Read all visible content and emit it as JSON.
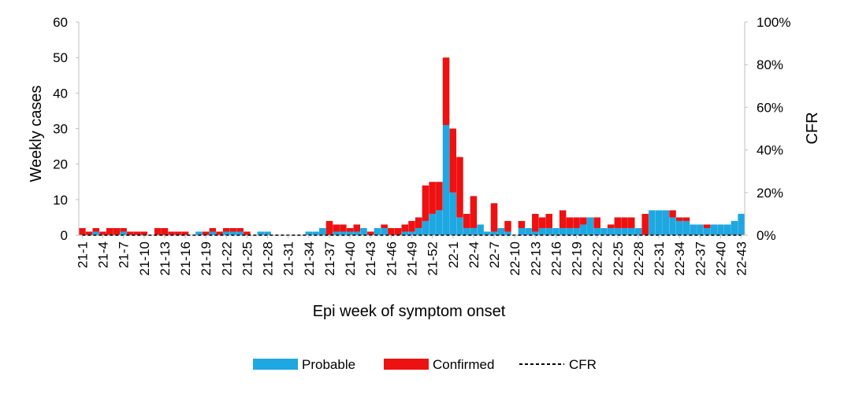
{
  "chart_data": {
    "type": "bar",
    "stacked": true,
    "xlabel": "Epi week of symptom onset",
    "ylabel": "Weekly cases",
    "y2label": "CFR",
    "ylim": [
      0,
      60
    ],
    "y2lim": [
      0,
      1
    ],
    "yticks": [
      "0",
      "10",
      "20",
      "30",
      "40",
      "50",
      "60"
    ],
    "y2ticks": [
      "0%",
      "20%",
      "40%",
      "60%",
      "80%",
      "100%"
    ],
    "xtick_labels": [
      "21-1",
      "21-4",
      "21-7",
      "21-10",
      "21-13",
      "21-16",
      "21-19",
      "21-22",
      "21-25",
      "21-28",
      "21-31",
      "21-34",
      "21-37",
      "21-40",
      "21-43",
      "21-46",
      "21-49",
      "21-52",
      "22-1",
      "22-4",
      "22-7",
      "22-10",
      "22-13",
      "22-16",
      "22-19",
      "22-22",
      "22-25",
      "22-28",
      "22-31",
      "22-34",
      "22-37",
      "22-40",
      "22-43"
    ],
    "xtick_step": 3,
    "n_weeks": 97,
    "legend": {
      "position": "bottom",
      "items": [
        "Probable",
        "Confirmed",
        "CFR"
      ]
    },
    "grid": false,
    "colors": {
      "probable": "#1ea7e1",
      "confirmed": "#ee1111",
      "cfr": "#000000",
      "axis": "#bfbfbf"
    },
    "series": [
      {
        "name": "Probable",
        "values": [
          0,
          0,
          1,
          0,
          0,
          0,
          1,
          0,
          0,
          0,
          0,
          0,
          0,
          0,
          0,
          0,
          0,
          1,
          0,
          1,
          0,
          1,
          1,
          1,
          0,
          0,
          1,
          1,
          0,
          0,
          0,
          0,
          0,
          1,
          1,
          2,
          0,
          1,
          1,
          1,
          1,
          2,
          0,
          2,
          2,
          0,
          0,
          1,
          1,
          2,
          4,
          6,
          7,
          31,
          12,
          5,
          2,
          2,
          3,
          1,
          1,
          2,
          1,
          0,
          2,
          2,
          1,
          2,
          2,
          2,
          2,
          2,
          2,
          3,
          5,
          2,
          2,
          2,
          2,
          2,
          2,
          2,
          0,
          7,
          7,
          7,
          5,
          4,
          4,
          3,
          3,
          2,
          3,
          3,
          3,
          4,
          6
        ]
      },
      {
        "name": "Confirmed",
        "values": [
          2,
          1,
          1,
          1,
          2,
          2,
          1,
          1,
          1,
          1,
          0,
          2,
          2,
          1,
          1,
          1,
          0,
          0,
          1,
          1,
          1,
          1,
          1,
          1,
          1,
          0,
          0,
          0,
          0,
          0,
          0,
          0,
          0,
          0,
          0,
          0,
          4,
          2,
          2,
          1,
          2,
          0,
          1,
          0,
          1,
          2,
          2,
          2,
          3,
          3,
          10,
          9,
          8,
          19,
          18,
          17,
          4,
          9,
          0,
          0,
          8,
          0,
          3,
          0,
          2,
          0,
          5,
          3,
          4,
          0,
          5,
          3,
          3,
          2,
          0,
          3,
          0,
          1,
          3,
          3,
          3,
          0,
          6,
          0,
          0,
          0,
          2,
          1,
          1,
          0,
          0,
          1,
          0,
          0,
          0,
          0,
          0
        ]
      },
      {
        "name": "CFR",
        "values": [
          0,
          0,
          0,
          0,
          0,
          0,
          0,
          0,
          0,
          0,
          0,
          0,
          0,
          0,
          0,
          0,
          0,
          0,
          0,
          0,
          0,
          0,
          0,
          0,
          0,
          0,
          0,
          0,
          0,
          0,
          0,
          0,
          0,
          0,
          0,
          0,
          0,
          0,
          0,
          0,
          0,
          0,
          0,
          0,
          0,
          0,
          0,
          0,
          0,
          0,
          0,
          0,
          0,
          0,
          0,
          0,
          0,
          0,
          0,
          0,
          0,
          0,
          0,
          0,
          0,
          0,
          0,
          0,
          0,
          0,
          0,
          0,
          0,
          0,
          0,
          0,
          0,
          0,
          0,
          0,
          0,
          0,
          0,
          0,
          0,
          0,
          0,
          0,
          0,
          0,
          0,
          0,
          0,
          0,
          0,
          0,
          0
        ]
      }
    ]
  }
}
